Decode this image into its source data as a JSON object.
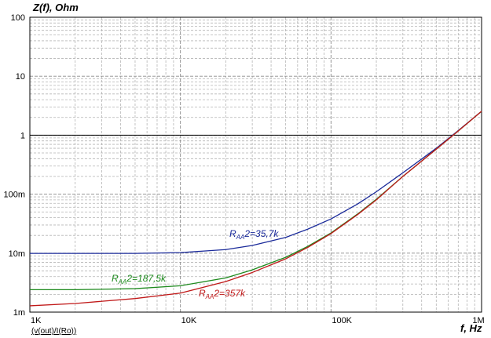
{
  "chart_data": {
    "type": "line",
    "ylabel": "Z(f), Ohm",
    "xlabel": "f, Hz",
    "x_scale": "log",
    "y_scale": "log",
    "xlim": [
      1000,
      1000000
    ],
    "ylim": [
      0.001,
      100
    ],
    "x_ticks": [
      {
        "value": 1000,
        "label": "1K"
      },
      {
        "value": 10000,
        "label": "10K"
      },
      {
        "value": 100000,
        "label": "100K"
      },
      {
        "value": 1000000,
        "label": "1M"
      }
    ],
    "y_ticks": [
      {
        "value": 100,
        "label": "100"
      },
      {
        "value": 10,
        "label": "10"
      },
      {
        "value": 1,
        "label": "1"
      },
      {
        "value": 0.1,
        "label": "100m"
      },
      {
        "value": 0.01,
        "label": "10m"
      },
      {
        "value": 0.001,
        "label": "1m"
      }
    ],
    "grid": true,
    "expression": "(v(out)/I(Ro))",
    "reference_line": {
      "y": 1,
      "color": "#000000"
    },
    "series": [
      {
        "name": "RAA2=35,7k",
        "label_main": "R",
        "label_sub": "AA",
        "label_tail": "2=35,7k",
        "color": "#1a2a9a",
        "x": [
          1000,
          2000,
          5000,
          10000,
          20000,
          30000,
          50000,
          70000,
          100000,
          150000,
          200000,
          300000,
          500000,
          700000,
          1000000
        ],
        "y": [
          0.0099,
          0.0099,
          0.0099,
          0.0102,
          0.0115,
          0.0135,
          0.0185,
          0.0255,
          0.038,
          0.068,
          0.11,
          0.23,
          0.6,
          1.2,
          2.55
        ]
      },
      {
        "name": "RAA2=187,5k",
        "label_main": "R",
        "label_sub": "AA",
        "label_tail": "2=187,5k",
        "color": "#1e8a1e",
        "x": [
          1000,
          2000,
          5000,
          10000,
          20000,
          30000,
          50000,
          70000,
          100000,
          150000,
          200000,
          300000,
          500000,
          700000,
          1000000
        ],
        "y": [
          0.0024,
          0.0024,
          0.0025,
          0.0028,
          0.0038,
          0.0052,
          0.0085,
          0.013,
          0.022,
          0.046,
          0.082,
          0.2,
          0.58,
          1.18,
          2.55
        ]
      },
      {
        "name": "RAA2=357k",
        "label_main": "R",
        "label_sub": "AA",
        "label_tail": "2=357k",
        "color": "#c01818",
        "x": [
          1000,
          2000,
          5000,
          10000,
          20000,
          30000,
          50000,
          70000,
          100000,
          150000,
          200000,
          300000,
          500000,
          700000,
          1000000
        ],
        "y": [
          0.00128,
          0.0014,
          0.0017,
          0.0021,
          0.0033,
          0.0047,
          0.008,
          0.0125,
          0.0215,
          0.045,
          0.08,
          0.2,
          0.58,
          1.18,
          2.55
        ]
      }
    ]
  }
}
